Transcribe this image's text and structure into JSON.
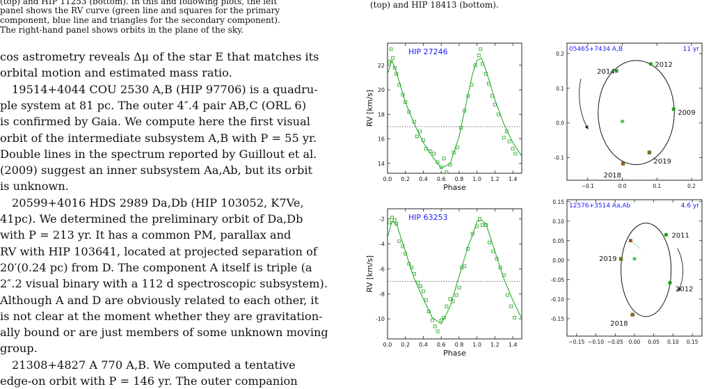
{
  "left_caption": [
    "(top) and HIP 11253 (bottom). In this and following plots, the left",
    "panel shows the RV curve (green line and squares for the primary",
    "component, blue line and triangles for the secondary component).",
    "The right-hand panel shows orbits in the plane of the sky."
  ],
  "left_body": [
    "cos astrometry reveals Δμ of the star E that matches its",
    "orbital motion and estimated mass ratio.",
    "19514+4044 COU 2530 A,B (HIP 97706) is a quadru-",
    "ple system at 81 pc. The outer 4″.4 pair AB,C (ORL 6)",
    "is confirmed by Gaia. We compute here the first visual",
    "orbit of the intermediate subsystem A,B with P = 55 yr.",
    "Double lines in the spectrum reported by Guillout et al.",
    "(2009) suggest an inner subsystem Aa,Ab, but its orbit",
    "is unknown.",
    "20599+4016 HDS 2989 Da,Db (HIP 103052, K7Ve,",
    "41pc). We determined the preliminary orbit of Da,Db",
    "with P = 213 yr. It has a common PM, parallax and",
    "RV with HIP 103641, located at projected separation of",
    "20′(0.24 pc) from D. The component A itself is triple (a",
    "2″.2 visual binary with a 112 d spectroscopic subsystem).",
    "Although A and D are obviously related to each other, it",
    "is not clear at the moment whether they are gravitation-",
    "ally bound or are just members of some unknown moving",
    "group.",
    "21308+4827 A 770 A,B. We computed a tentative",
    "edge-on orbit with P = 146 yr. The outer companion"
  ],
  "right_caption": "(top) and HIP 18413 (bottom).",
  "colors": {
    "green": "#1aa31a",
    "blue": "#1a1aff",
    "orbit_obs": "#b5541a"
  },
  "chart_data": [
    {
      "type": "scatter",
      "title": "HIP 27246",
      "xlabel": "Phase",
      "ylabel": "RV [km/s]",
      "xlim": [
        0.0,
        1.5
      ],
      "ylim": [
        13.2,
        23.8
      ],
      "xticks": [
        "0.0",
        "0.2",
        "0.4",
        "0.6",
        "0.8",
        "1.0",
        "1.2",
        "1.4"
      ],
      "yticks": [
        14,
        16,
        18,
        20,
        22
      ],
      "gamma": 17.0,
      "curve": {
        "phase": [
          0.0,
          0.05,
          0.1,
          0.2,
          0.3,
          0.4,
          0.5,
          0.6,
          0.7,
          0.8,
          0.9,
          0.95,
          1.0,
          1.05,
          1.1,
          1.2,
          1.3,
          1.4,
          1.5
        ],
        "rv": [
          21.3,
          22.4,
          21.4,
          19.0,
          17.2,
          15.7,
          14.6,
          13.6,
          14.0,
          16.2,
          19.6,
          21.3,
          22.4,
          22.6,
          21.6,
          19.2,
          17.2,
          15.7,
          14.6
        ]
      },
      "points": {
        "phase": [
          0.02,
          0.04,
          0.06,
          0.08,
          0.1,
          0.13,
          0.17,
          0.2,
          0.24,
          0.3,
          0.33,
          0.36,
          0.4,
          0.43,
          0.48,
          0.52,
          0.56,
          0.6,
          0.63,
          0.66,
          0.7,
          0.74,
          0.78,
          0.82,
          0.86,
          0.9,
          0.94,
          0.98,
          1.02,
          1.04,
          1.06,
          1.1,
          1.13,
          1.17,
          1.2,
          1.24,
          1.3,
          1.33,
          1.36,
          1.4,
          1.43
        ],
        "rv": [
          22.3,
          23.3,
          22.6,
          21.8,
          21.3,
          20.4,
          19.6,
          19.0,
          18.2,
          17.4,
          16.2,
          16.6,
          15.9,
          15.2,
          15.0,
          14.8,
          14.1,
          13.7,
          14.4,
          13.3,
          13.9,
          14.9,
          15.3,
          16.9,
          18.3,
          19.5,
          20.4,
          22.0,
          22.8,
          23.3,
          22.1,
          21.3,
          20.5,
          19.5,
          18.8,
          18.0,
          16.1,
          16.6,
          15.8,
          15.2,
          14.8
        ]
      }
    },
    {
      "type": "scatter",
      "title": "05465+7434 A,B",
      "period_label": "11 yr",
      "xlim": [
        -0.16,
        0.23
      ],
      "ylim": [
        -0.165,
        0.23
      ],
      "xticks": [
        "-0.1",
        "0.0",
        "0.1",
        "0.2"
      ],
      "yticks": [
        "-0.1",
        "0.0",
        "0.1",
        "0.2"
      ],
      "orbit": {
        "cx": 0.04,
        "cy": 0.03,
        "rx": 0.11,
        "ry": 0.15
      },
      "epochs": [
        {
          "label": "2014",
          "x": -0.017,
          "y": 0.15,
          "color": "green"
        },
        {
          "label": "2012",
          "x": 0.082,
          "y": 0.17,
          "color": "green"
        },
        {
          "label": "2009",
          "x": 0.148,
          "y": 0.04,
          "color": "green"
        },
        {
          "label": "2019",
          "x": 0.078,
          "y": -0.085,
          "color": "orange"
        },
        {
          "label": "2018",
          "x": 0.002,
          "y": -0.117,
          "color": "orange"
        }
      ]
    },
    {
      "type": "scatter",
      "title": "HIP 63253",
      "xlabel": "Phase",
      "ylabel": "RV [km/s]",
      "xlim": [
        0.0,
        1.5
      ],
      "ylim": [
        -11.6,
        -1.2
      ],
      "xticks": [
        "0.0",
        "0.2",
        "0.4",
        "0.6",
        "0.8",
        "1.0",
        "1.2",
        "1.4"
      ],
      "yticks": [
        -10,
        -8,
        -6,
        -4,
        -2
      ],
      "gamma": -7.0,
      "curve": {
        "phase": [
          0.0,
          0.05,
          0.1,
          0.2,
          0.3,
          0.4,
          0.5,
          0.6,
          0.7,
          0.8,
          0.9,
          0.95,
          1.0,
          1.05,
          1.1,
          1.2,
          1.3,
          1.4,
          1.5
        ],
        "rv": [
          -3.5,
          -2.2,
          -2.4,
          -4.6,
          -6.8,
          -8.4,
          -9.9,
          -10.4,
          -9.0,
          -6.6,
          -4.2,
          -3.3,
          -2.2,
          -2.1,
          -2.4,
          -4.6,
          -6.8,
          -8.5,
          -10.0
        ]
      },
      "points": {
        "phase": [
          0.02,
          0.05,
          0.08,
          0.1,
          0.13,
          0.17,
          0.2,
          0.24,
          0.27,
          0.3,
          0.34,
          0.37,
          0.4,
          0.43,
          0.46,
          0.5,
          0.53,
          0.56,
          0.6,
          0.63,
          0.66,
          0.7,
          0.73,
          0.77,
          0.8,
          0.83,
          0.86,
          0.9,
          0.95,
          1.0,
          1.03,
          1.06,
          1.1,
          1.14,
          1.18,
          1.22,
          1.26,
          1.3,
          1.34,
          1.38,
          1.42
        ],
        "rv": [
          -2.3,
          -1.9,
          -2.1,
          -2.4,
          -3.8,
          -4.2,
          -4.8,
          -5.6,
          -5.9,
          -6.4,
          -7.1,
          -7.4,
          -7.8,
          -8.5,
          -9.4,
          -10.1,
          -10.6,
          -11.0,
          -10.1,
          -9.9,
          -9.0,
          -8.4,
          -8.6,
          -8.1,
          -7.5,
          -5.9,
          -5.8,
          -4.4,
          -3.2,
          -2.6,
          -2.0,
          -2.5,
          -2.5,
          -3.9,
          -4.6,
          -5.2,
          -5.9,
          -6.5,
          -8.1,
          -9.0,
          -9.9
        ]
      }
    },
    {
      "type": "scatter",
      "title": "12576+3514 Aa,Ab",
      "period_label": "4.6 yr",
      "xlim": [
        -0.175,
        0.175
      ],
      "ylim": [
        -0.195,
        0.155
      ],
      "xticks": [
        "-0.15",
        "-0.10",
        "-0.05",
        "0.00",
        "0.05",
        "0.10",
        "0.15"
      ],
      "yticks": [
        "-0.15",
        "-0.10",
        "-0.05",
        "0.00",
        "0.05",
        "0.10",
        "0.15"
      ],
      "orbit": {
        "cx": 0.03,
        "cy": -0.025,
        "rx": 0.065,
        "ry": 0.12
      },
      "epochs": [
        {
          "label": "2011",
          "x": 0.082,
          "y": 0.065,
          "color": "green"
        },
        {
          "label": "2019",
          "x": -0.035,
          "y": 0.003,
          "color": "orange"
        },
        {
          "label": "2012",
          "x": 0.092,
          "y": -0.058,
          "color": "green"
        },
        {
          "label": "2018",
          "x": -0.005,
          "y": -0.14,
          "color": "orange"
        }
      ],
      "extra_obs": {
        "x": -0.01,
        "y": 0.05
      }
    }
  ]
}
